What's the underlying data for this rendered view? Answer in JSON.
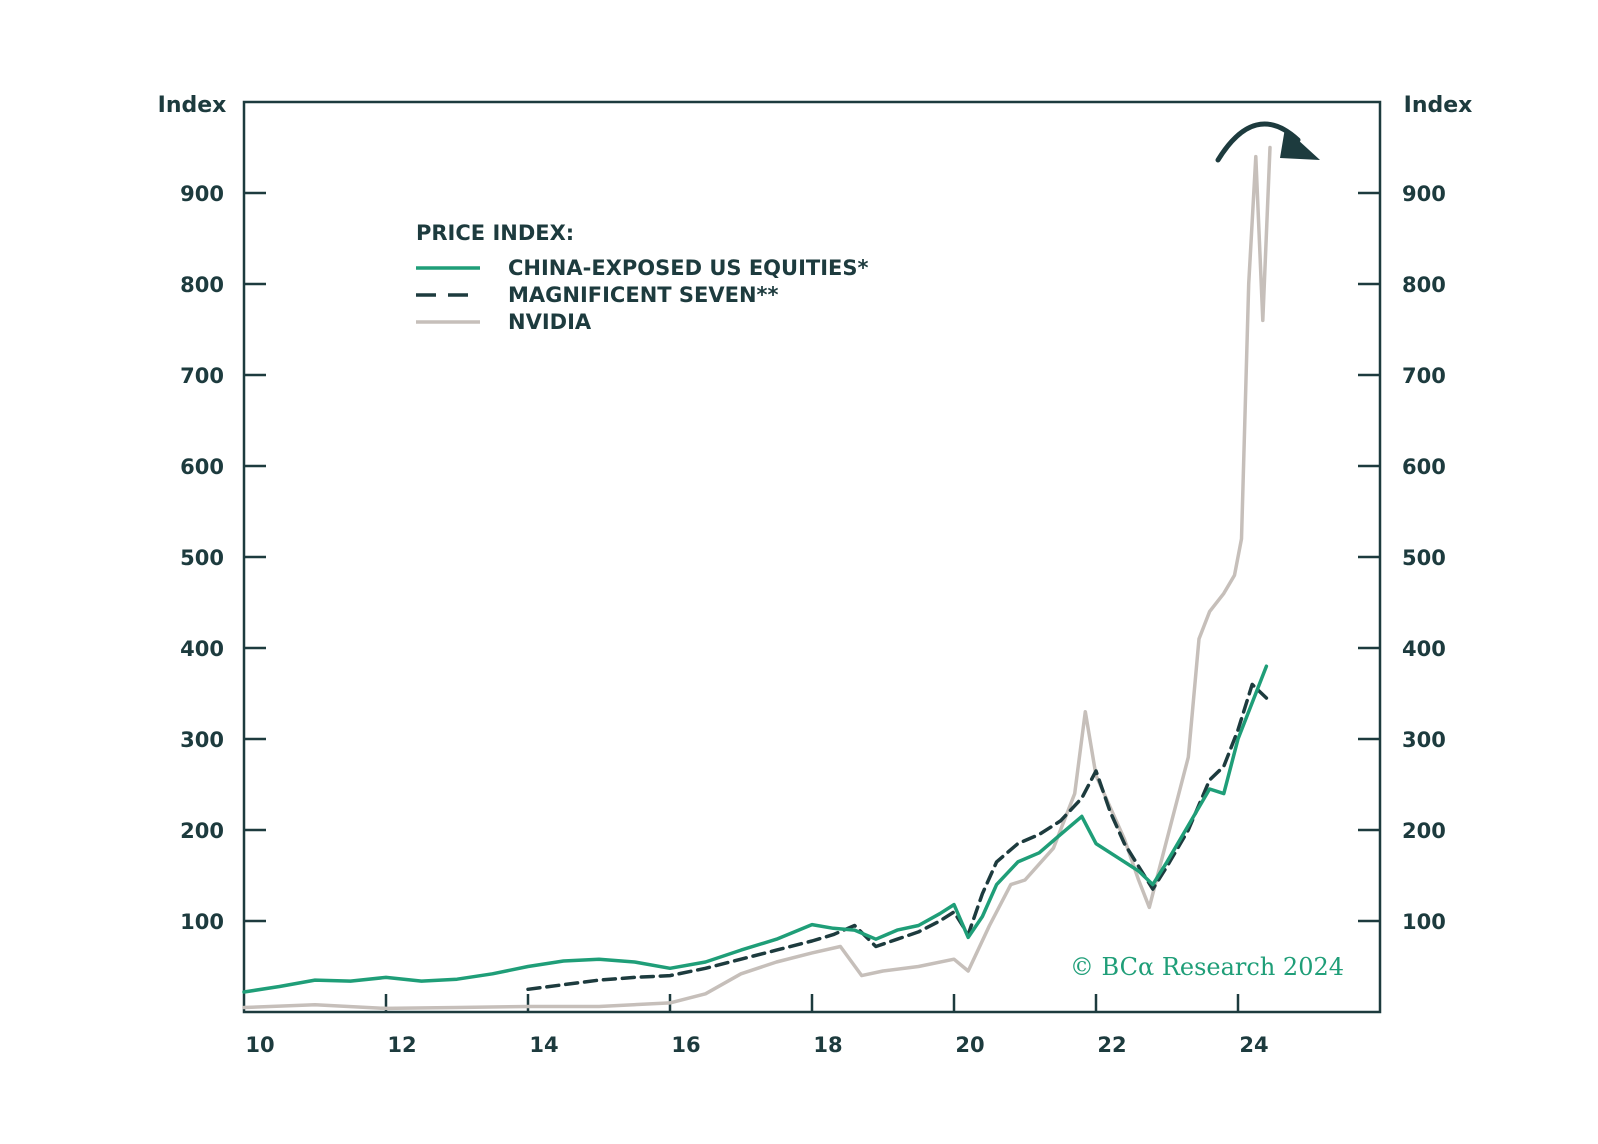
{
  "chart_data": {
    "type": "line",
    "y_axis_left_title": "Index",
    "y_axis_right_title": "Index",
    "ylim": [
      0,
      1000
    ],
    "y_ticks": [
      100,
      200,
      300,
      400,
      500,
      600,
      700,
      800,
      900
    ],
    "xlim": [
      2010,
      2026
    ],
    "x_ticks": [
      {
        "value": 2010,
        "label": "10"
      },
      {
        "value": 2012,
        "label": "12"
      },
      {
        "value": 2014,
        "label": "14"
      },
      {
        "value": 2016,
        "label": "16"
      },
      {
        "value": 2018,
        "label": "18"
      },
      {
        "value": 2020,
        "label": "20"
      },
      {
        "value": 2022,
        "label": "22"
      },
      {
        "value": 2024,
        "label": "24"
      }
    ],
    "legend_title": "PRICE INDEX:",
    "series": [
      {
        "name": "CHINA-EXPOSED US EQUITIES*",
        "style": "solid",
        "color": "#1f9e78",
        "points": [
          [
            2010,
            22
          ],
          [
            2010.5,
            28
          ],
          [
            2011,
            35
          ],
          [
            2011.5,
            34
          ],
          [
            2012,
            38
          ],
          [
            2012.5,
            34
          ],
          [
            2013,
            36
          ],
          [
            2013.5,
            42
          ],
          [
            2014,
            50
          ],
          [
            2014.5,
            56
          ],
          [
            2015,
            58
          ],
          [
            2015.5,
            55
          ],
          [
            2016,
            48
          ],
          [
            2016.5,
            55
          ],
          [
            2017,
            68
          ],
          [
            2017.5,
            80
          ],
          [
            2018,
            96
          ],
          [
            2018.3,
            92
          ],
          [
            2018.6,
            90
          ],
          [
            2018.9,
            80
          ],
          [
            2019.2,
            90
          ],
          [
            2019.5,
            95
          ],
          [
            2019.8,
            108
          ],
          [
            2020,
            118
          ],
          [
            2020.2,
            82
          ],
          [
            2020.4,
            105
          ],
          [
            2020.6,
            140
          ],
          [
            2020.9,
            165
          ],
          [
            2021.2,
            175
          ],
          [
            2021.5,
            195
          ],
          [
            2021.8,
            215
          ],
          [
            2022,
            185
          ],
          [
            2022.3,
            170
          ],
          [
            2022.6,
            155
          ],
          [
            2022.8,
            140
          ],
          [
            2023,
            165
          ],
          [
            2023.3,
            205
          ],
          [
            2023.6,
            245
          ],
          [
            2023.8,
            240
          ],
          [
            2024,
            300
          ],
          [
            2024.2,
            340
          ],
          [
            2024.4,
            380
          ]
        ]
      },
      {
        "name": "MAGNIFICENT SEVEN**",
        "style": "dashed",
        "color": "#1d3b3e",
        "points": [
          [
            2014,
            25
          ],
          [
            2014.5,
            30
          ],
          [
            2015,
            35
          ],
          [
            2015.5,
            38
          ],
          [
            2016,
            40
          ],
          [
            2016.5,
            48
          ],
          [
            2017,
            58
          ],
          [
            2017.5,
            68
          ],
          [
            2018,
            78
          ],
          [
            2018.3,
            85
          ],
          [
            2018.6,
            95
          ],
          [
            2018.9,
            72
          ],
          [
            2019.2,
            80
          ],
          [
            2019.5,
            88
          ],
          [
            2019.8,
            100
          ],
          [
            2020,
            110
          ],
          [
            2020.2,
            85
          ],
          [
            2020.4,
            130
          ],
          [
            2020.6,
            165
          ],
          [
            2020.9,
            185
          ],
          [
            2021.2,
            195
          ],
          [
            2021.5,
            210
          ],
          [
            2021.8,
            235
          ],
          [
            2022,
            265
          ],
          [
            2022.2,
            220
          ],
          [
            2022.4,
            185
          ],
          [
            2022.6,
            160
          ],
          [
            2022.8,
            135
          ],
          [
            2023,
            160
          ],
          [
            2023.3,
            200
          ],
          [
            2023.6,
            255
          ],
          [
            2023.8,
            270
          ],
          [
            2024,
            310
          ],
          [
            2024.2,
            360
          ],
          [
            2024.4,
            345
          ]
        ]
      },
      {
        "name": "NVIDIA",
        "style": "solid",
        "color": "#c6bfba",
        "points": [
          [
            2010,
            5
          ],
          [
            2011,
            8
          ],
          [
            2012,
            4
          ],
          [
            2013,
            5
          ],
          [
            2014,
            6
          ],
          [
            2015,
            6
          ],
          [
            2016,
            10
          ],
          [
            2016.5,
            20
          ],
          [
            2017,
            42
          ],
          [
            2017.5,
            55
          ],
          [
            2018,
            65
          ],
          [
            2018.4,
            72
          ],
          [
            2018.7,
            40
          ],
          [
            2019,
            45
          ],
          [
            2019.5,
            50
          ],
          [
            2020,
            58
          ],
          [
            2020.2,
            45
          ],
          [
            2020.5,
            95
          ],
          [
            2020.8,
            140
          ],
          [
            2021,
            145
          ],
          [
            2021.4,
            180
          ],
          [
            2021.7,
            240
          ],
          [
            2021.85,
            330
          ],
          [
            2022,
            260
          ],
          [
            2022.2,
            225
          ],
          [
            2022.4,
            190
          ],
          [
            2022.6,
            145
          ],
          [
            2022.75,
            115
          ],
          [
            2022.9,
            160
          ],
          [
            2023.1,
            220
          ],
          [
            2023.3,
            280
          ],
          [
            2023.45,
            410
          ],
          [
            2023.6,
            440
          ],
          [
            2023.8,
            460
          ],
          [
            2023.95,
            480
          ],
          [
            2024.05,
            520
          ],
          [
            2024.15,
            800
          ],
          [
            2024.25,
            940
          ],
          [
            2024.35,
            760
          ],
          [
            2024.45,
            950
          ]
        ]
      }
    ],
    "annotation": "© BCα Research 2024"
  }
}
